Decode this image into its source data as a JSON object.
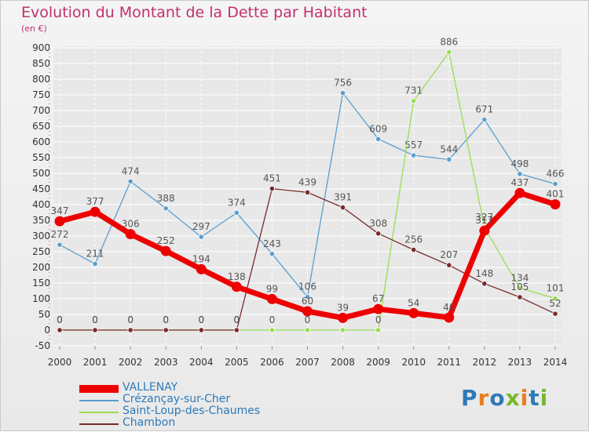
{
  "header": {
    "title": "Evolution du Montant de la Dette par Habitant",
    "unit": "(en €)"
  },
  "logo": {
    "text": "Proxiti"
  },
  "colors": {
    "title": "#c03070",
    "vallenay": "#ee0000",
    "crezancay": "#5a9ecf",
    "saint_loup": "#99dd55",
    "chambon": "#7a2a2a",
    "axis_labels": "#333333",
    "point_labels": "#555555",
    "grid": "#ffffff"
  },
  "chart_data": {
    "type": "line",
    "x": [
      "2000",
      "2001",
      "2002",
      "2003",
      "2004",
      "2005",
      "2006",
      "2007",
      "2008",
      "2009",
      "2010",
      "2011",
      "2012",
      "2013",
      "2014"
    ],
    "ylim": [
      -50,
      900
    ],
    "yticks": [
      -50,
      0,
      50,
      100,
      150,
      200,
      250,
      300,
      350,
      400,
      450,
      500,
      550,
      600,
      650,
      700,
      750,
      800,
      850,
      900
    ],
    "grid": true,
    "legend_position": "bottom-left",
    "series": [
      {
        "name": "VALLENAY",
        "color": "#ee0000",
        "values": [
          347,
          377,
          306,
          252,
          194,
          138,
          99,
          60,
          39,
          67,
          54,
          40,
          317,
          437,
          401
        ]
      },
      {
        "name": "Crézançay-sur-Cher",
        "color": "#5a9ecf",
        "values": [
          272,
          211,
          474,
          388,
          297,
          374,
          243,
          106,
          756,
          609,
          557,
          544,
          671,
          498,
          466
        ]
      },
      {
        "name": "Saint-Loup-des-Chaumes",
        "color": "#99dd55",
        "values": [
          0,
          0,
          0,
          0,
          0,
          0,
          0,
          0,
          0,
          0,
          731,
          886,
          327,
          134,
          101
        ]
      },
      {
        "name": "Chambon",
        "color": "#7a2a2a",
        "values": [
          0,
          0,
          0,
          0,
          0,
          0,
          451,
          439,
          391,
          308,
          256,
          207,
          148,
          105,
          52
        ]
      }
    ]
  }
}
